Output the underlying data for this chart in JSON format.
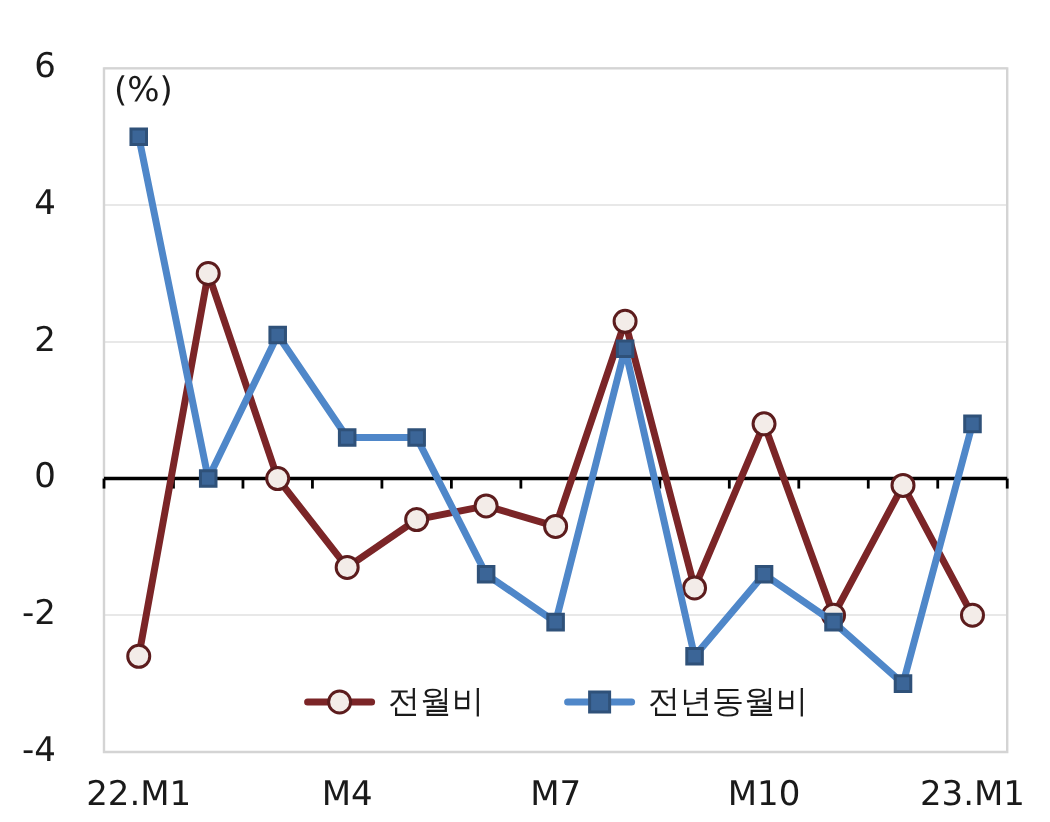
{
  "chart_data": {
    "type": "line",
    "ylabel": "(%)",
    "categories": [
      "22.M1",
      null,
      null,
      "M4",
      null,
      null,
      "M7",
      null,
      null,
      "M10",
      null,
      null,
      "23.M1"
    ],
    "series": [
      {
        "name": "전월비",
        "color": "#7b2527",
        "marker": "circle",
        "values": [
          -2.6,
          3.0,
          0.0,
          -1.3,
          -0.6,
          -0.4,
          -0.7,
          2.3,
          -1.6,
          0.8,
          -2.0,
          -0.1,
          -2.0
        ]
      },
      {
        "name": "전년동월비",
        "color": "#4f87c9",
        "marker": "square",
        "values": [
          5.0,
          0.0,
          2.1,
          0.6,
          0.6,
          -1.4,
          -2.1,
          1.9,
          -2.6,
          -1.4,
          -2.1,
          -3.0,
          0.8
        ]
      }
    ],
    "ylim": [
      -4,
      6
    ],
    "yticks": [
      -4,
      -2,
      0,
      2,
      4,
      6
    ],
    "grid": "y",
    "legend": "bottom"
  }
}
